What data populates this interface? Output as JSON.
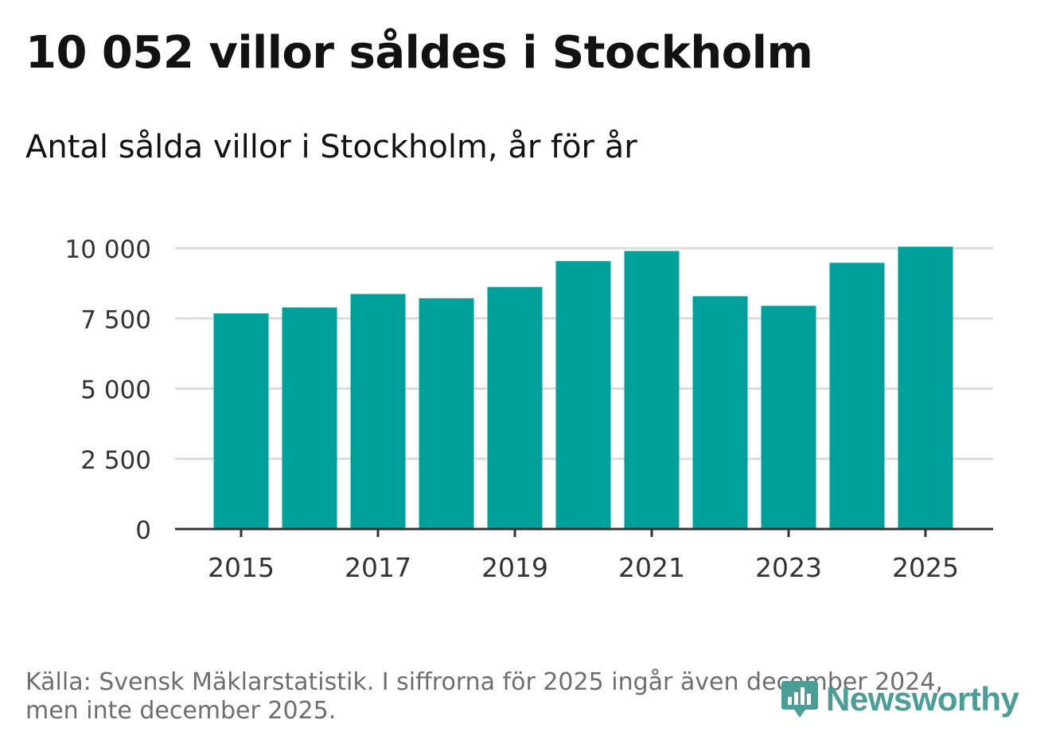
{
  "title": "10 052 villor såldes i Stockholm",
  "subtitle": "Antal sålda villor i Stockholm, år för år",
  "footnote": {
    "line1": "Källa: Svensk Mäklarstatistik. I siffrorna för 2025 ingår även december 2024,",
    "line2": "men inte december 2025."
  },
  "logo": {
    "text": "Newsworthy",
    "icon": "bar-chart-badge-icon"
  },
  "colors": {
    "bar": "#00a19a",
    "grid": "#dcdcdc",
    "axis": "#333333",
    "logo": "#4a9e96"
  },
  "chart_data": {
    "type": "bar",
    "title": "10 052 villor såldes i Stockholm",
    "subtitle": "Antal sålda villor i Stockholm, år för år",
    "xlabel": "",
    "ylabel": "",
    "categories": [
      "2015",
      "2016",
      "2017",
      "2018",
      "2019",
      "2020",
      "2021",
      "2022",
      "2023",
      "2024",
      "2025"
    ],
    "values": [
      7680,
      7890,
      8370,
      8220,
      8620,
      9540,
      9900,
      8290,
      7950,
      9480,
      10052
    ],
    "ylim": [
      0,
      10000
    ],
    "y_ticks": [
      0,
      2500,
      5000,
      7500,
      10000
    ],
    "y_tick_labels": [
      "0",
      "2 500",
      "5 000",
      "7 500",
      "10 000"
    ],
    "x_tick_labels": [
      "2015",
      "2017",
      "2019",
      "2021",
      "2023",
      "2025"
    ],
    "grid": true,
    "legend": "none"
  }
}
